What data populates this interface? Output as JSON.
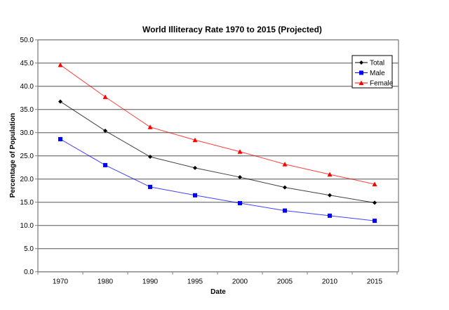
{
  "chart_data": {
    "type": "line",
    "title": "World Illiteracy Rate 1970 to 2015 (Projected)",
    "xlabel": "Date",
    "ylabel": "Percentage of Population",
    "categories": [
      "1970",
      "1980",
      "1990",
      "1995",
      "2000",
      "2005",
      "2010",
      "2015"
    ],
    "ylim": [
      0,
      50
    ],
    "yticks": [
      "0.0",
      "5.0",
      "10.0",
      "15.0",
      "20.0",
      "25.0",
      "30.0",
      "35.0",
      "40.0",
      "45.0",
      "50.0"
    ],
    "grid": true,
    "legend_position": "top-right",
    "series": [
      {
        "name": "Total",
        "color": "#000000",
        "marker": "diamond",
        "values": [
          36.7,
          30.4,
          24.8,
          22.4,
          20.4,
          18.2,
          16.5,
          14.9
        ]
      },
      {
        "name": "Male",
        "color": "#0000ff",
        "marker": "square",
        "values": [
          28.6,
          23.0,
          18.3,
          16.5,
          14.8,
          13.2,
          12.1,
          11.0
        ]
      },
      {
        "name": "Female",
        "color": "#ff0000",
        "marker": "triangle",
        "values": [
          44.6,
          37.7,
          31.2,
          28.4,
          25.9,
          23.2,
          21.0,
          18.9
        ]
      }
    ]
  }
}
